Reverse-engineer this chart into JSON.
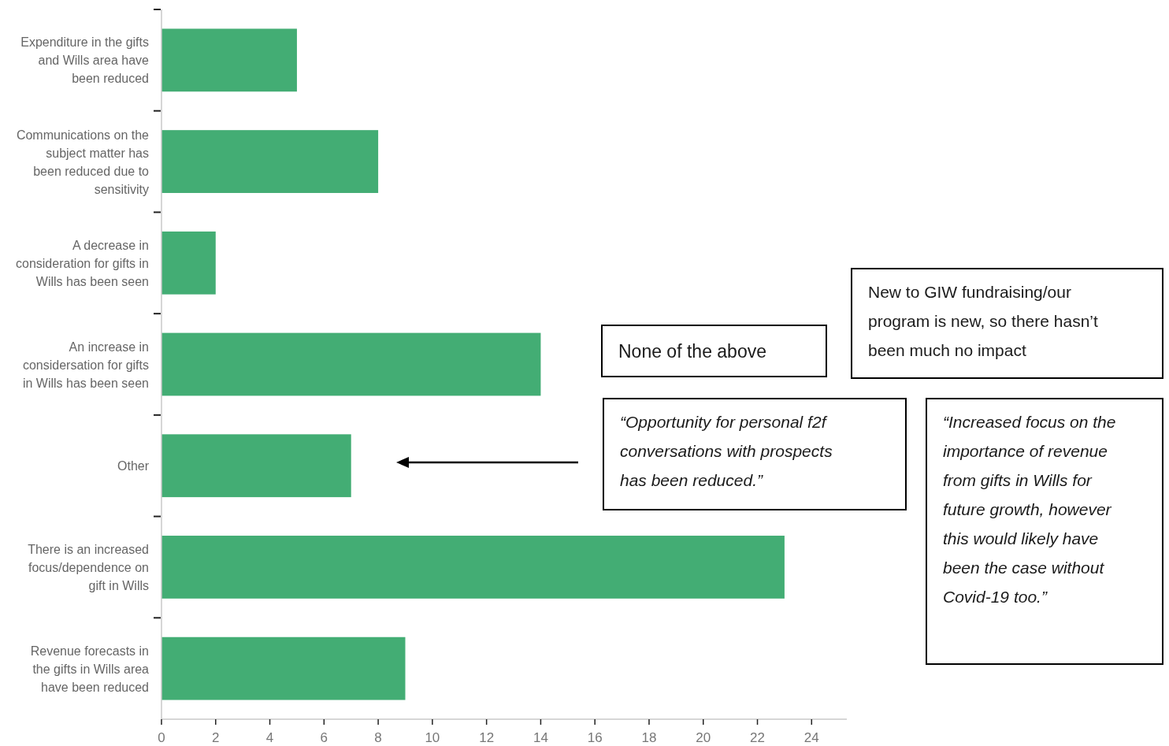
{
  "chart_data": {
    "type": "bar",
    "orientation": "horizontal",
    "categories": [
      "Expenditure in the gifts and Wills area have been reduced",
      "Communications on the subject matter has been reduced due to sensitivity",
      "A decrease in consideration for gifts in Wills has been seen",
      "An increase in considersation for gifts in Wills has been seen",
      "Other",
      "There is an increased focus/dependence on gift in Wills",
      "Revenue forecasts in the gifts in Wills area have been reduced"
    ],
    "values": [
      5,
      8,
      2,
      14,
      7,
      23,
      9
    ],
    "color": "#43ad74",
    "xlim": [
      0,
      25.3
    ],
    "xticks": [
      0,
      2,
      4,
      6,
      8,
      10,
      12,
      14,
      16,
      18,
      20,
      22,
      24
    ],
    "annotations": [
      "None of the above",
      "New to GIW fundraising/our program is new, so there hasn’t been much no impact",
      "“Opportunity for personal f2f conversations with prospects has been reduced.”",
      "“Increased focus on the importance of revenue from gifts in Wills for future growth, however this would likely have been the case without Covid-19 too.”"
    ]
  }
}
